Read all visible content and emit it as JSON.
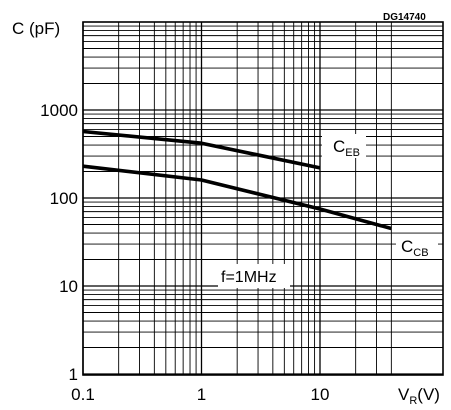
{
  "chart_data": {
    "type": "line",
    "code": "DG14740",
    "ylabel": "C (pF)",
    "xlabel_main": "V",
    "xlabel_sub": "R",
    "xlabel_unit": "(V)",
    "annotation": "f=1MHz",
    "xscale": "log",
    "yscale": "log",
    "xlim": [
      0.1,
      40
    ],
    "ylim": [
      1,
      10000
    ],
    "grid": true,
    "x_ticks": [
      {
        "value": 0.1,
        "label": "0.1"
      },
      {
        "value": 1,
        "label": "1"
      },
      {
        "value": 10,
        "label": "10"
      }
    ],
    "y_ticks": [
      {
        "value": 1,
        "label": "1"
      },
      {
        "value": 10,
        "label": "10"
      },
      {
        "value": 100,
        "label": "100"
      },
      {
        "value": 1000,
        "label": "1000"
      }
    ],
    "series": [
      {
        "name": "C",
        "name_sub": "EB",
        "x": [
          0.1,
          1,
          10
        ],
        "y": [
          570,
          420,
          220
        ]
      },
      {
        "name": "C",
        "name_sub": "CB",
        "x": [
          0.1,
          1,
          10,
          40
        ],
        "y": [
          230,
          160,
          75,
          45
        ]
      }
    ]
  }
}
